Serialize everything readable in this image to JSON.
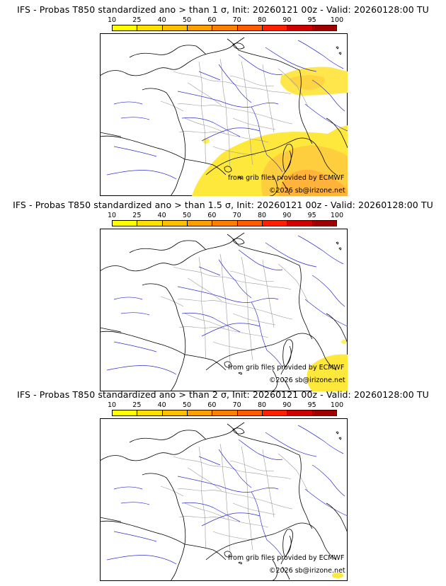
{
  "colorbar": {
    "labels": [
      "10",
      "25",
      "40",
      "50",
      "60",
      "70",
      "80",
      "90",
      "95",
      "100"
    ],
    "colors": [
      "#ffff00",
      "#ffe000",
      "#ffc000",
      "#ff9f00",
      "#ff8000",
      "#ff5c00",
      "#ff2000",
      "#d00000",
      "#a00000",
      "#700000"
    ]
  },
  "panels": [
    {
      "title": "IFS - Probas T850  standardized ano > than 1 σ, Init: 20260121 00z - Valid: 20260128:00 TU",
      "credit_source": "from grib files provided by ECMWF",
      "credit_copyright": "©2026 sb@irizone.net"
    },
    {
      "title": "IFS - Probas T850  standardized ano > than 1.5 σ, Init: 20260121 00z - Valid: 20260128:00 TU",
      "credit_source": "from grib files provided by ECMWF",
      "credit_copyright": "©2026 sb@irizone.net"
    },
    {
      "title": "IFS - Probas T850  standardized ano > than 2 σ, Init: 20260121 00z - Valid: 20260128:00 TU",
      "credit_source": "from grib files provided by ECMWF",
      "credit_copyright": "©2026 sb@irizone.net"
    }
  ]
}
